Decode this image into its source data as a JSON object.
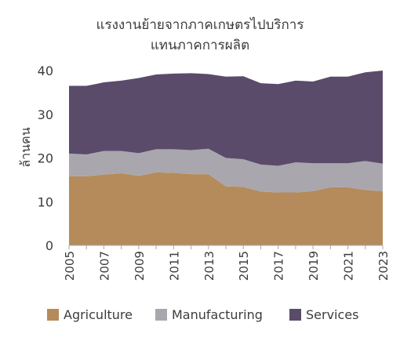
{
  "chart_data": {
    "type": "area",
    "stacked": true,
    "title_lines": [
      "แรงงานย้ายจากภาคเกษตรไปบริการ",
      "แทนภาคการผลิต"
    ],
    "ylabel": "ล้านคน",
    "ylim": [
      0,
      40
    ],
    "yticks": [
      0,
      10,
      20,
      30,
      40
    ],
    "x": [
      2005,
      2006,
      2007,
      2008,
      2009,
      2010,
      2011,
      2012,
      2013,
      2014,
      2015,
      2016,
      2017,
      2018,
      2019,
      2020,
      2021,
      2022,
      2023
    ],
    "xticks": [
      "2005",
      "2007",
      "2009",
      "2011",
      "2013",
      "2015",
      "2017",
      "2019",
      "2021",
      "2023"
    ],
    "series": [
      {
        "name": "Agriculture",
        "color": "#b58b5b",
        "values": [
          15.8,
          15.8,
          16.2,
          16.5,
          15.9,
          16.7,
          16.6,
          16.3,
          16.3,
          13.5,
          13.4,
          12.3,
          12.1,
          12.1,
          12.4,
          13.3,
          13.3,
          12.7,
          12.4
        ]
      },
      {
        "name": "Manufacturing",
        "color": "#a9a7ad",
        "values": [
          5.2,
          5.0,
          5.4,
          5.1,
          5.2,
          5.3,
          5.4,
          5.5,
          5.8,
          6.5,
          6.3,
          6.2,
          6.1,
          6.9,
          6.4,
          5.5,
          5.5,
          6.6,
          6.3
        ]
      },
      {
        "name": "Services",
        "color": "#5a4b6b",
        "values": [
          15.5,
          15.7,
          15.7,
          16.1,
          17.2,
          17.1,
          17.3,
          17.6,
          17.1,
          18.6,
          19.0,
          18.6,
          18.7,
          18.7,
          18.7,
          19.8,
          19.8,
          20.3,
          21.3
        ]
      }
    ],
    "grid": false,
    "legend_position": "bottom"
  }
}
